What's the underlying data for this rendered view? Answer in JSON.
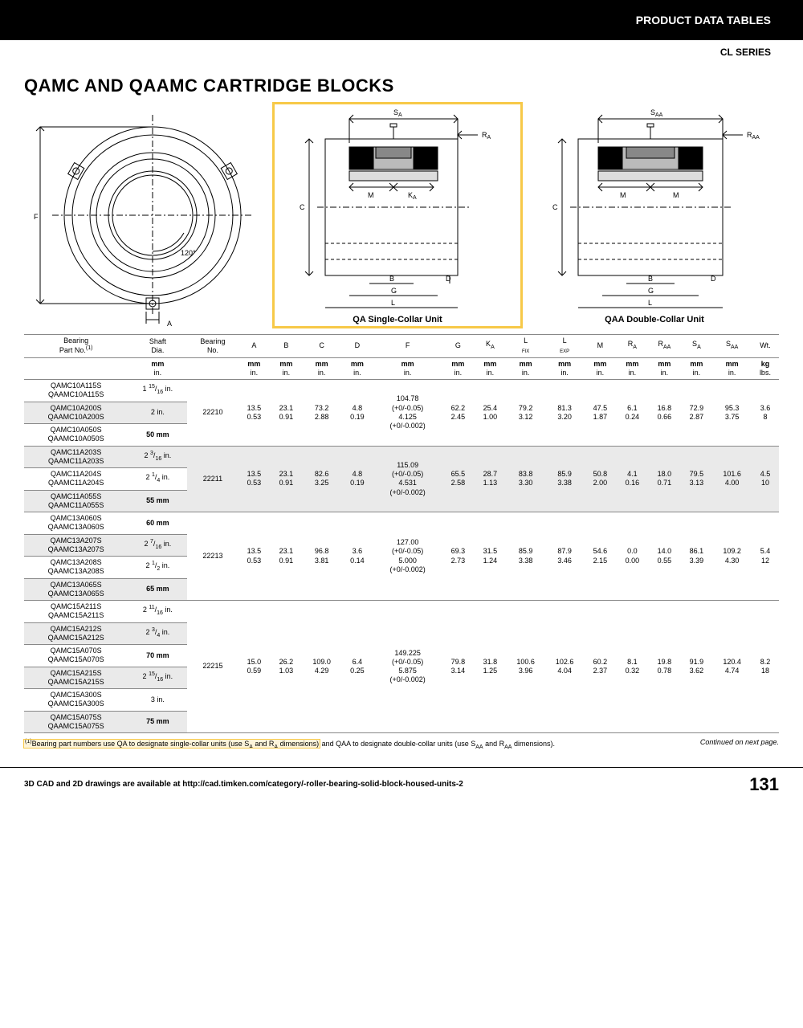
{
  "colors": {
    "accent": "#f08a24",
    "highlight": "#f7c948",
    "stripe": "#eaeaea",
    "rule": "#888888",
    "black": "#000000"
  },
  "header": {
    "section": "PRODUCT DATA TABLES",
    "series": "CL SERIES"
  },
  "title": "QAMC AND QAAMC CARTRIDGE BLOCKS",
  "diagrams": {
    "front": {
      "labels": {
        "F": "F",
        "A": "A",
        "angle": "120°"
      }
    },
    "single": {
      "caption": "QA Single-Collar Unit",
      "labels": {
        "SA": "S",
        "RA": "R",
        "M": "M",
        "KA": "K",
        "C": "C",
        "B": "B",
        "D": "D",
        "G": "G",
        "L": "L"
      }
    },
    "double": {
      "caption": "QAA Double-Collar Unit",
      "labels": {
        "SAA": "S",
        "RAA": "R",
        "M": "M",
        "C": "C",
        "B": "B",
        "D": "D",
        "G": "G",
        "L": "L"
      }
    }
  },
  "table": {
    "head1": [
      "Bearing\nPart No.(1)",
      "Shaft\nDia.",
      "Bearing\nNo.",
      "A",
      "B",
      "C",
      "D",
      "F",
      "G",
      "KA",
      "L\nFIX",
      "L\nEXP",
      "M",
      "RA",
      "RAA",
      "SA",
      "SAA",
      "Wt."
    ],
    "units_mm": [
      "",
      "mm",
      "",
      "mm",
      "mm",
      "mm",
      "mm",
      "mm",
      "mm",
      "mm",
      "mm",
      "mm",
      "mm",
      "mm",
      "mm",
      "mm",
      "mm",
      "kg"
    ],
    "units_in": [
      "",
      "in.",
      "",
      "in.",
      "in.",
      "in.",
      "in.",
      "in.",
      "in.",
      "in.",
      "in.",
      "in.",
      "in.",
      "in.",
      "in.",
      "in.",
      "in.",
      "lbs."
    ],
    "groups": [
      {
        "bearingNo": "22210",
        "common_mm": [
          "13.5",
          "23.1",
          "73.2",
          "4.8",
          "104.78\n(+0/-0.05)",
          "62.2",
          "25.4",
          "79.2",
          "81.3",
          "47.5",
          "6.1",
          "16.8",
          "72.9",
          "95.3",
          "3.6"
        ],
        "common_in": [
          "0.53",
          "0.91",
          "2.88",
          "0.19",
          "4.125\n(+0/-0.002)",
          "2.45",
          "1.00",
          "3.12",
          "3.20",
          "1.87",
          "0.24",
          "0.66",
          "2.87",
          "3.75",
          "8"
        ],
        "rows": [
          {
            "p": "QAMC10A115S\nQAAMC10A115S",
            "shaft": "1 15/16 in.",
            "stripe": false
          },
          {
            "p": "QAMC10A200S\nQAAMC10A200S",
            "shaft": "2 in.",
            "stripe": true
          },
          {
            "p": "QAMC10A050S\nQAAMC10A050S",
            "shaft": "50 mm",
            "stripe": false,
            "shaftBold": true
          }
        ]
      },
      {
        "bearingNo": "22211",
        "common_mm": [
          "13.5",
          "23.1",
          "82.6",
          "4.8",
          "115.09\n(+0/-0.05)",
          "65.5",
          "28.7",
          "83.8",
          "85.9",
          "50.8",
          "4.1",
          "18.0",
          "79.5",
          "101.6",
          "4.5"
        ],
        "common_in": [
          "0.53",
          "0.91",
          "3.25",
          "0.19",
          "4.531\n(+0/-0.002)",
          "2.58",
          "1.13",
          "3.30",
          "3.38",
          "2.00",
          "0.16",
          "0.71",
          "3.13",
          "4.00",
          "10"
        ],
        "rows": [
          {
            "p": "QAMC11A203S\nQAAMC11A203S",
            "shaft": "2 3/16 in.",
            "stripe": true
          },
          {
            "p": "QAMC11A204S\nQAAMC11A204S",
            "shaft": "2 1/4 in.",
            "stripe": false
          },
          {
            "p": "QAMC11A055S\nQAAMC11A055S",
            "shaft": "55 mm",
            "stripe": true,
            "shaftBold": true
          }
        ]
      },
      {
        "bearingNo": "22213",
        "common_mm": [
          "13.5",
          "23.1",
          "96.8",
          "3.6",
          "127.00\n(+0/-0.05)",
          "69.3",
          "31.5",
          "85.9",
          "87.9",
          "54.6",
          "0.0",
          "14.0",
          "86.1",
          "109.2",
          "5.4"
        ],
        "common_in": [
          "0.53",
          "0.91",
          "3.81",
          "0.14",
          "5.000\n(+0/-0.002)",
          "2.73",
          "1.24",
          "3.38",
          "3.46",
          "2.15",
          "0.00",
          "0.55",
          "3.39",
          "4.30",
          "12"
        ],
        "rows": [
          {
            "p": "QAMC13A060S\nQAAMC13A060S",
            "shaft": "60 mm",
            "stripe": false,
            "shaftBold": true
          },
          {
            "p": "QAMC13A207S\nQAAMC13A207S",
            "shaft": "2 7/16 in.",
            "stripe": true
          },
          {
            "p": "QAMC13A208S\nQAAMC13A208S",
            "shaft": "2 1/2 in.",
            "stripe": false
          },
          {
            "p": "QAMC13A065S\nQAAMC13A065S",
            "shaft": "65 mm",
            "stripe": true,
            "shaftBold": true
          }
        ]
      },
      {
        "bearingNo": "22215",
        "common_mm": [
          "15.0",
          "26.2",
          "109.0",
          "6.4",
          "149.225\n(+0/-0.05)",
          "79.8",
          "31.8",
          "100.6",
          "102.6",
          "60.2",
          "8.1",
          "19.8",
          "91.9",
          "120.4",
          "8.2"
        ],
        "common_in": [
          "0.59",
          "1.03",
          "4.29",
          "0.25",
          "5.875\n(+0/-0.002)",
          "3.14",
          "1.25",
          "3.96",
          "4.04",
          "2.37",
          "0.32",
          "0.78",
          "3.62",
          "4.74",
          "18"
        ],
        "rows": [
          {
            "p": "QAMC15A211S\nQAAMC15A211S",
            "shaft": "2 11/16 in.",
            "stripe": false
          },
          {
            "p": "QAMC15A212S\nQAAMC15A212S",
            "shaft": "2 3/4 in.",
            "stripe": true
          },
          {
            "p": "QAMC15A070S\nQAAMC15A070S",
            "shaft": "70 mm",
            "stripe": false,
            "shaftBold": true
          },
          {
            "p": "QAMC15A215S\nQAAMC15A215S",
            "shaft": "2 15/16 in.",
            "stripe": true
          },
          {
            "p": "QAMC15A300S\nQAAMC15A300S",
            "shaft": "3 in.",
            "stripe": false
          },
          {
            "p": "QAMC15A075S\nQAAMC15A075S",
            "shaft": "75 mm",
            "stripe": true,
            "shaftBold": true
          }
        ]
      }
    ]
  },
  "footnote": {
    "text1": "(1)Bearing part numbers use QA to designate single-collar units (use SA and RA dimensions)",
    "text2": " and QAA to designate double-collar units (use SAA and RAA dimensions).",
    "continued": "Continued on next page."
  },
  "footer": {
    "note": "3D CAD and 2D drawings are available at http://cad.timken.com/category/-roller-bearing-solid-block-housed-units-2",
    "page": "131"
  }
}
